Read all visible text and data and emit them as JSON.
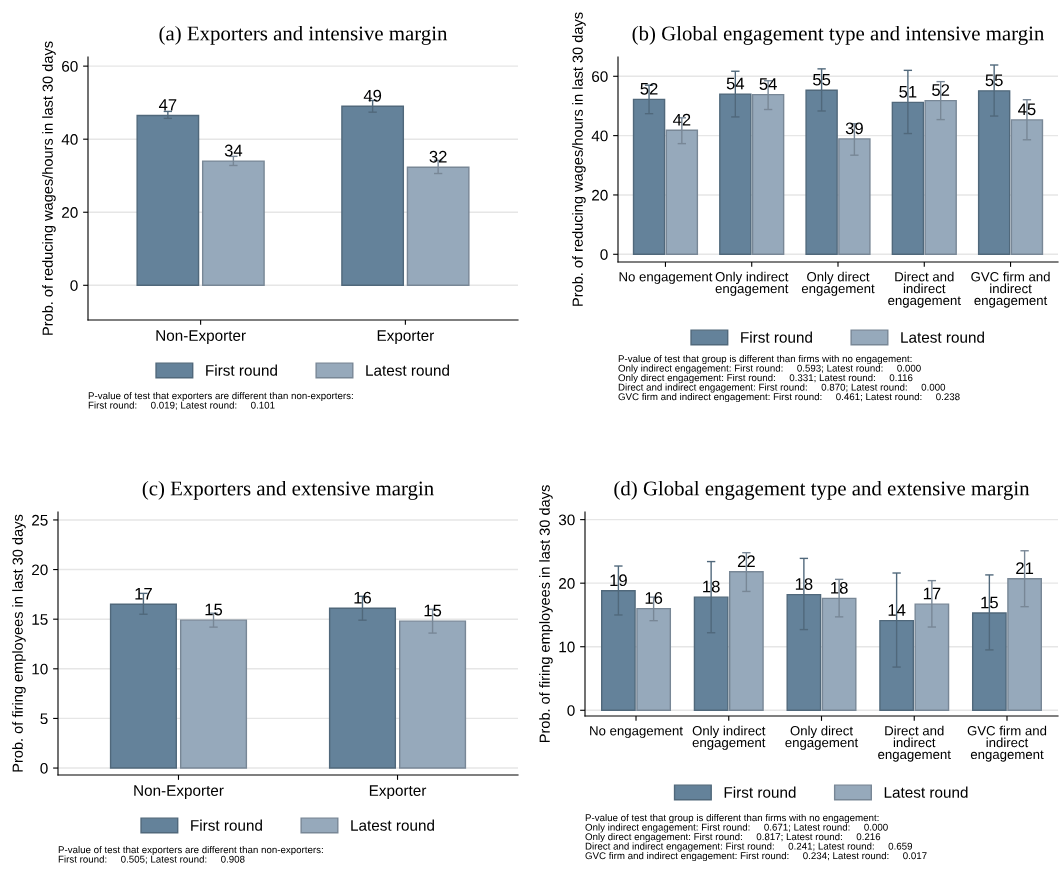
{
  "chart_data": [
    {
      "type": "bar",
      "title": "(a) Exporters and intensive margin",
      "ylabel": "Prob. of reducing wages/hours in last 30 days",
      "categories": [
        "Non-Exporter",
        "Exporter"
      ],
      "ylim": [
        -9.5,
        62.5
      ],
      "yticks": [
        0,
        20,
        40,
        60
      ],
      "grid": "y",
      "legend": "bottom",
      "series": [
        {
          "name": "First round",
          "color": "#64829a",
          "values": [
            46.5,
            49.0
          ],
          "errors": [
            [
              45.7,
              47.6
            ],
            [
              47.4,
              50.6
            ]
          ],
          "value_labels": [
            "47",
            "49"
          ]
        },
        {
          "name": "Latest round",
          "color": "#96a9bb",
          "values": [
            34.0,
            32.3
          ],
          "errors": [
            [
              32.8,
              35.3
            ],
            [
              30.6,
              34.2
            ]
          ],
          "value_labels": [
            "34",
            "32"
          ]
        }
      ],
      "annotations": [
        "P-value of test that exporters are different than non-exporters:",
        "First round:     0.019; Latest round:     0.101"
      ]
    },
    {
      "type": "bar",
      "title": "(b) Global engagement type and intensive margin",
      "ylabel": "Prob. of reducing wages/hours in last 30 days",
      "categories": [
        "No engagement",
        "Only indirect\nengagement",
        "Only direct\nengagement",
        "Direct and\nindirect\nengagement",
        "GVC firm and\nindirect\nengagement"
      ],
      "ylim": [
        -2.6,
        66.5
      ],
      "yticks": [
        0,
        20,
        40,
        60
      ],
      "grid": "y",
      "legend": "bottom",
      "series": [
        {
          "name": "First round",
          "color": "#64829a",
          "values": [
            52.2,
            54.0,
            55.3,
            51.2,
            55.1
          ],
          "errors": [
            [
              47.4,
              57.0
            ],
            [
              46.3,
              61.7
            ],
            [
              48.3,
              62.5
            ],
            [
              40.7,
              62.0
            ],
            [
              46.6,
              63.8
            ]
          ],
          "value_labels": [
            "52",
            "54",
            "55",
            "51",
            "55"
          ]
        },
        {
          "name": "Latest round",
          "color": "#96a9bb",
          "values": [
            41.8,
            53.8,
            38.9,
            51.8,
            45.3
          ],
          "errors": [
            [
              37.3,
              46.0
            ],
            [
              48.8,
              58.5
            ],
            [
              33.4,
              44.0
            ],
            [
              45.4,
              58.2
            ],
            [
              38.6,
              52.1
            ]
          ],
          "value_labels": [
            "42",
            "54",
            "39",
            "52",
            "45"
          ]
        }
      ],
      "annotations": [
        "P-value of test that group is different than firms with no engagement:",
        "Only indirect engagement: First round:     0.593; Latest round:     0.000",
        "Only direct engagement: First round:     0.331; Latest round:     0.116",
        "Direct and indirect engagement: First round:     0.870; Latest round:     0.000",
        "GVC firm and indirect engagement: First round:     0.461; Latest round:     0.238"
      ]
    },
    {
      "type": "bar",
      "title": "(c) Exporters and extensive margin",
      "ylabel": "Prob. of firing employees in last 30 days",
      "categories": [
        "Non-Exporter",
        "Exporter"
      ],
      "ylim": [
        -0.7,
        25.8
      ],
      "yticks": [
        0,
        5,
        10,
        15,
        20,
        25
      ],
      "grid": "y",
      "legend": "bottom",
      "series": [
        {
          "name": "First round",
          "color": "#64829a",
          "values": [
            16.5,
            16.1
          ],
          "errors": [
            [
              15.5,
              17.6
            ],
            [
              14.9,
              17.3
            ]
          ],
          "value_labels": [
            "17",
            "16"
          ]
        },
        {
          "name": "Latest round",
          "color": "#96a9bb",
          "values": [
            14.9,
            14.8
          ],
          "errors": [
            [
              14.2,
              15.6
            ],
            [
              13.6,
              16.0
            ]
          ],
          "value_labels": [
            "15",
            "15"
          ]
        }
      ],
      "annotations": [
        "P-value of test that exporters are different than non-exporters:",
        "First round:     0.505; Latest round:     0.908"
      ]
    },
    {
      "type": "bar",
      "title": "(d) Global engagement type and extensive margin",
      "ylabel": "Prob. of firing employees in last 30 days",
      "categories": [
        "No engagement",
        "Only indirect\nengagement",
        "Only direct\nengagement",
        "Direct and\nindirect\nengagement",
        "GVC firm and\nindirect\nengagement"
      ],
      "ylim": [
        -0.9,
        31.2
      ],
      "yticks": [
        0,
        10,
        20,
        30
      ],
      "grid": "y",
      "legend": "bottom",
      "series": [
        {
          "name": "First round",
          "color": "#64829a",
          "values": [
            18.8,
            17.8,
            18.2,
            14.1,
            15.3
          ],
          "errors": [
            [
              15.0,
              22.7
            ],
            [
              12.2,
              23.4
            ],
            [
              12.7,
              23.9
            ],
            [
              6.8,
              21.6
            ],
            [
              9.5,
              21.3
            ]
          ],
          "value_labels": [
            "19",
            "18",
            "18",
            "14",
            "15"
          ]
        },
        {
          "name": "Latest round",
          "color": "#96a9bb",
          "values": [
            16.0,
            21.8,
            17.6,
            16.7,
            20.7
          ],
          "errors": [
            [
              14.1,
              17.8
            ],
            [
              18.7,
              24.8
            ],
            [
              14.7,
              20.6
            ],
            [
              13.1,
              20.4
            ],
            [
              16.3,
              25.1
            ]
          ],
          "value_labels": [
            "16",
            "22",
            "18",
            "17",
            "21"
          ]
        }
      ],
      "annotations": [
        "P-value of test that group is different than firms with no engagement:",
        "Only indirect engagement: First round:     0.671; Latest round:     0.000",
        "Only direct engagement: First round:     0.817; Latest round:     0.216",
        "Direct and indirect engagement: First round:     0.241; Latest round:     0.659",
        "GVC firm and indirect engagement: First round:     0.234; Latest round:     0.017"
      ]
    }
  ]
}
